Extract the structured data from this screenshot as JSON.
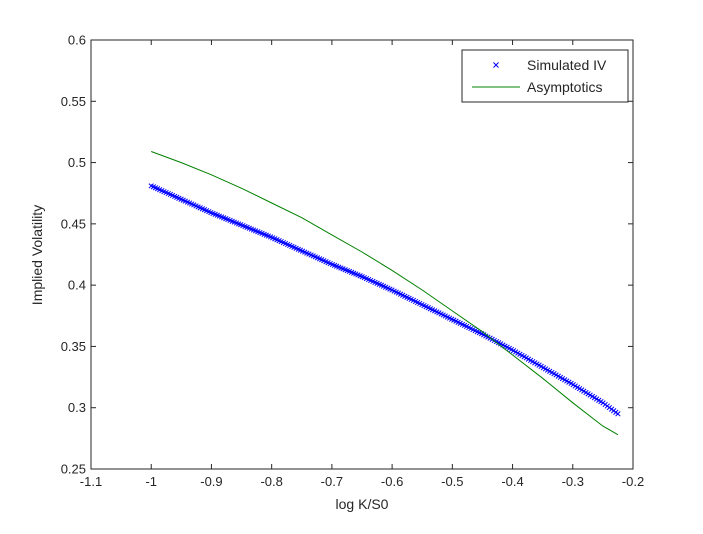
{
  "chart_data": {
    "type": "line",
    "title": "",
    "xlabel": "log K/S0",
    "ylabel": "Implied Volatility",
    "xlim": [
      -1.1,
      -0.2
    ],
    "ylim": [
      0.25,
      0.6
    ],
    "xticks": [
      -1.1,
      -1.0,
      -0.9,
      -0.8,
      -0.7,
      -0.6,
      -0.5,
      -0.4,
      -0.3,
      -0.2
    ],
    "yticks": [
      0.25,
      0.3,
      0.35,
      0.4,
      0.45,
      0.5,
      0.55,
      0.6
    ],
    "xtick_labels": [
      "-1.1",
      "-1",
      "-0.9",
      "-0.8",
      "-0.7",
      "-0.6",
      "-0.5",
      "-0.4",
      "-0.3",
      "-0.2"
    ],
    "ytick_labels": [
      "0.25",
      "0.3",
      "0.35",
      "0.4",
      "0.45",
      "0.5",
      "0.55",
      "0.6"
    ],
    "grid": false,
    "legend_position": "top-right",
    "series": [
      {
        "name": "Simulated IV",
        "marker": "x",
        "color": "#0000ff",
        "x": [
          -1.0,
          -0.95,
          -0.9,
          -0.85,
          -0.8,
          -0.75,
          -0.7,
          -0.65,
          -0.6,
          -0.55,
          -0.5,
          -0.45,
          -0.4,
          -0.35,
          -0.3,
          -0.25,
          -0.225
        ],
        "y": [
          0.481,
          0.47,
          0.459,
          0.449,
          0.439,
          0.428,
          0.417,
          0.407,
          0.396,
          0.384,
          0.372,
          0.36,
          0.347,
          0.333,
          0.319,
          0.304,
          0.295
        ]
      },
      {
        "name": "Asymptotics",
        "marker": "line",
        "color": "#008000",
        "x": [
          -1.0,
          -0.95,
          -0.9,
          -0.85,
          -0.8,
          -0.75,
          -0.7,
          -0.65,
          -0.6,
          -0.55,
          -0.5,
          -0.45,
          -0.4,
          -0.35,
          -0.3,
          -0.25,
          -0.225
        ],
        "y": [
          0.509,
          0.5,
          0.49,
          0.479,
          0.467,
          0.455,
          0.441,
          0.427,
          0.412,
          0.396,
          0.379,
          0.362,
          0.343,
          0.324,
          0.304,
          0.285,
          0.278
        ]
      }
    ]
  }
}
